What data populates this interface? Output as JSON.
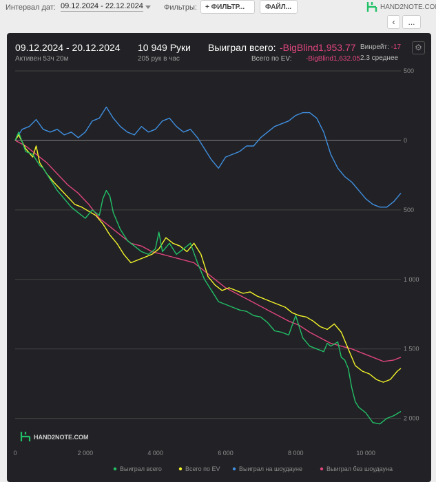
{
  "toolbar": {
    "date_interval_label": "Интервал дат:",
    "date_range": "09.12.2024 - 22.12.2024",
    "filters_label": "Фильтры:",
    "filter_button": "+ ФИЛЬТР...",
    "file_button": "ФАЙЛ...",
    "logo_text": "HAND2NOTE.COM",
    "back_icon": "chevron-left-icon",
    "more_button": "..."
  },
  "header": {
    "period": "09.12.2024 - 20.12.2024",
    "active": "Активен 53ч 20м",
    "hands": "10 949 Руки",
    "hands_per_hour": "205 рук в час",
    "won_total_label": "Выиграл всего:",
    "won_total_value": "-BigBlind1,953.77",
    "ev_label": "Всего по EV:",
    "ev_value": "-BigBlind1,632.05",
    "winrate_label": "Винрейт:",
    "winrate_value": "-17",
    "average": "2.3 среднее"
  },
  "watermark": "HAND2NOTE.COM",
  "colors": {
    "panel_bg": "#222226",
    "won_total": "#22c067",
    "ev": "#f5f52a",
    "showdown": "#3f8fe0",
    "non_showdown": "#e0457b",
    "negative_text": "#e0457b"
  },
  "chart_data": {
    "type": "line",
    "title": "",
    "xlabel": "",
    "ylabel": "",
    "xlim": [
      0,
      11000
    ],
    "ylim": [
      -2200,
      500
    ],
    "x_ticks": [
      0,
      2000,
      4000,
      6000,
      8000,
      10000
    ],
    "x_tick_labels": [
      "0",
      "2 000",
      "4 000",
      "6 000",
      "8 000",
      "10 000"
    ],
    "y_ticks": [
      500,
      0,
      -500,
      -1000,
      -1500,
      -2000
    ],
    "y_tick_labels": [
      "500",
      "0",
      "500",
      "1 000",
      "1 500",
      "2 000"
    ],
    "grid": true,
    "legend_position": "bottom",
    "series": [
      {
        "name": "Выиграл всего",
        "color": "#22c067",
        "points": [
          [
            0,
            0
          ],
          [
            100,
            60
          ],
          [
            300,
            -80
          ],
          [
            500,
            -100
          ],
          [
            700,
            -180
          ],
          [
            800,
            -200
          ],
          [
            1000,
            -280
          ],
          [
            1200,
            -360
          ],
          [
            1400,
            -420
          ],
          [
            1600,
            -480
          ],
          [
            1800,
            -520
          ],
          [
            2000,
            -560
          ],
          [
            2200,
            -500
          ],
          [
            2400,
            -540
          ],
          [
            2500,
            -420
          ],
          [
            2600,
            -360
          ],
          [
            2700,
            -400
          ],
          [
            2800,
            -520
          ],
          [
            3000,
            -640
          ],
          [
            3200,
            -720
          ],
          [
            3400,
            -760
          ],
          [
            3600,
            -800
          ],
          [
            3800,
            -820
          ],
          [
            4000,
            -780
          ],
          [
            4100,
            -660
          ],
          [
            4200,
            -800
          ],
          [
            4400,
            -740
          ],
          [
            4600,
            -820
          ],
          [
            4800,
            -780
          ],
          [
            5000,
            -740
          ],
          [
            5200,
            -880
          ],
          [
            5400,
            -1000
          ],
          [
            5600,
            -1080
          ],
          [
            5800,
            -1160
          ],
          [
            6000,
            -1180
          ],
          [
            6200,
            -1200
          ],
          [
            6400,
            -1220
          ],
          [
            6600,
            -1230
          ],
          [
            6800,
            -1260
          ],
          [
            7000,
            -1270
          ],
          [
            7200,
            -1310
          ],
          [
            7400,
            -1370
          ],
          [
            7600,
            -1380
          ],
          [
            7800,
            -1400
          ],
          [
            8000,
            -1260
          ],
          [
            8200,
            -1420
          ],
          [
            8400,
            -1480
          ],
          [
            8600,
            -1500
          ],
          [
            8800,
            -1520
          ],
          [
            8900,
            -1460
          ],
          [
            9000,
            -1480
          ],
          [
            9200,
            -1450
          ],
          [
            9300,
            -1560
          ],
          [
            9400,
            -1580
          ],
          [
            9500,
            -1640
          ],
          [
            9600,
            -1780
          ],
          [
            9700,
            -1880
          ],
          [
            9800,
            -1920
          ],
          [
            10000,
            -1960
          ],
          [
            10200,
            -2030
          ],
          [
            10400,
            -2040
          ],
          [
            10600,
            -2000
          ],
          [
            10800,
            -1980
          ],
          [
            11000,
            -1950
          ]
        ]
      },
      {
        "name": "Всего по EV",
        "color": "#f5f52a",
        "points": [
          [
            0,
            0
          ],
          [
            100,
            40
          ],
          [
            300,
            -60
          ],
          [
            500,
            -120
          ],
          [
            600,
            -40
          ],
          [
            700,
            -160
          ],
          [
            900,
            -240
          ],
          [
            1100,
            -300
          ],
          [
            1400,
            -380
          ],
          [
            1700,
            -460
          ],
          [
            1900,
            -480
          ],
          [
            2100,
            -510
          ],
          [
            2300,
            -540
          ],
          [
            2500,
            -600
          ],
          [
            2700,
            -680
          ],
          [
            2900,
            -740
          ],
          [
            3100,
            -820
          ],
          [
            3300,
            -880
          ],
          [
            3500,
            -860
          ],
          [
            3700,
            -840
          ],
          [
            3900,
            -820
          ],
          [
            4100,
            -780
          ],
          [
            4300,
            -700
          ],
          [
            4500,
            -740
          ],
          [
            4700,
            -760
          ],
          [
            4900,
            -800
          ],
          [
            5100,
            -740
          ],
          [
            5300,
            -820
          ],
          [
            5500,
            -980
          ],
          [
            5700,
            -1040
          ],
          [
            5900,
            -1080
          ],
          [
            6100,
            -1060
          ],
          [
            6300,
            -1080
          ],
          [
            6500,
            -1100
          ],
          [
            6700,
            -1090
          ],
          [
            6900,
            -1120
          ],
          [
            7100,
            -1140
          ],
          [
            7300,
            -1160
          ],
          [
            7500,
            -1180
          ],
          [
            7700,
            -1200
          ],
          [
            7900,
            -1240
          ],
          [
            8100,
            -1260
          ],
          [
            8300,
            -1270
          ],
          [
            8500,
            -1300
          ],
          [
            8700,
            -1340
          ],
          [
            8900,
            -1360
          ],
          [
            9100,
            -1320
          ],
          [
            9300,
            -1380
          ],
          [
            9500,
            -1500
          ],
          [
            9700,
            -1620
          ],
          [
            9900,
            -1660
          ],
          [
            10100,
            -1680
          ],
          [
            10300,
            -1720
          ],
          [
            10500,
            -1740
          ],
          [
            10700,
            -1720
          ],
          [
            10900,
            -1660
          ],
          [
            11000,
            -1640
          ]
        ]
      },
      {
        "name": "Выиграл на шоудауне",
        "color": "#3f8fe0",
        "points": [
          [
            0,
            0
          ],
          [
            200,
            80
          ],
          [
            400,
            100
          ],
          [
            600,
            150
          ],
          [
            800,
            80
          ],
          [
            1000,
            60
          ],
          [
            1200,
            80
          ],
          [
            1400,
            40
          ],
          [
            1600,
            60
          ],
          [
            1800,
            20
          ],
          [
            2000,
            60
          ],
          [
            2200,
            140
          ],
          [
            2400,
            160
          ],
          [
            2600,
            240
          ],
          [
            2800,
            160
          ],
          [
            3000,
            100
          ],
          [
            3200,
            60
          ],
          [
            3400,
            40
          ],
          [
            3600,
            100
          ],
          [
            3800,
            60
          ],
          [
            4000,
            80
          ],
          [
            4200,
            140
          ],
          [
            4400,
            160
          ],
          [
            4600,
            100
          ],
          [
            4800,
            60
          ],
          [
            5000,
            80
          ],
          [
            5200,
            20
          ],
          [
            5400,
            -60
          ],
          [
            5600,
            -140
          ],
          [
            5800,
            -200
          ],
          [
            6000,
            -120
          ],
          [
            6200,
            -100
          ],
          [
            6400,
            -80
          ],
          [
            6600,
            -40
          ],
          [
            6800,
            -40
          ],
          [
            7000,
            20
          ],
          [
            7200,
            60
          ],
          [
            7400,
            100
          ],
          [
            7600,
            120
          ],
          [
            7800,
            140
          ],
          [
            8000,
            180
          ],
          [
            8200,
            200
          ],
          [
            8400,
            200
          ],
          [
            8600,
            160
          ],
          [
            8800,
            60
          ],
          [
            9000,
            -100
          ],
          [
            9200,
            -200
          ],
          [
            9400,
            -260
          ],
          [
            9600,
            -300
          ],
          [
            9800,
            -360
          ],
          [
            10000,
            -420
          ],
          [
            10200,
            -460
          ],
          [
            10400,
            -480
          ],
          [
            10600,
            -480
          ],
          [
            10800,
            -440
          ],
          [
            11000,
            -380
          ]
        ]
      },
      {
        "name": "Выиграл без шоудауна",
        "color": "#e0457b",
        "points": [
          [
            0,
            0
          ],
          [
            300,
            -40
          ],
          [
            600,
            -100
          ],
          [
            900,
            -160
          ],
          [
            1200,
            -240
          ],
          [
            1500,
            -320
          ],
          [
            1800,
            -380
          ],
          [
            2100,
            -460
          ],
          [
            2400,
            -560
          ],
          [
            2700,
            -620
          ],
          [
            3000,
            -680
          ],
          [
            3300,
            -740
          ],
          [
            3600,
            -760
          ],
          [
            3900,
            -800
          ],
          [
            4200,
            -820
          ],
          [
            4500,
            -840
          ],
          [
            4800,
            -860
          ],
          [
            5100,
            -880
          ],
          [
            5400,
            -940
          ],
          [
            5700,
            -1000
          ],
          [
            6000,
            -1060
          ],
          [
            6300,
            -1100
          ],
          [
            6600,
            -1140
          ],
          [
            6900,
            -1180
          ],
          [
            7200,
            -1220
          ],
          [
            7500,
            -1260
          ],
          [
            7800,
            -1300
          ],
          [
            8100,
            -1330
          ],
          [
            8400,
            -1380
          ],
          [
            8700,
            -1420
          ],
          [
            9000,
            -1460
          ],
          [
            9300,
            -1480
          ],
          [
            9600,
            -1500
          ],
          [
            9900,
            -1530
          ],
          [
            10200,
            -1560
          ],
          [
            10500,
            -1590
          ],
          [
            10800,
            -1580
          ],
          [
            11000,
            -1560
          ]
        ]
      }
    ]
  }
}
